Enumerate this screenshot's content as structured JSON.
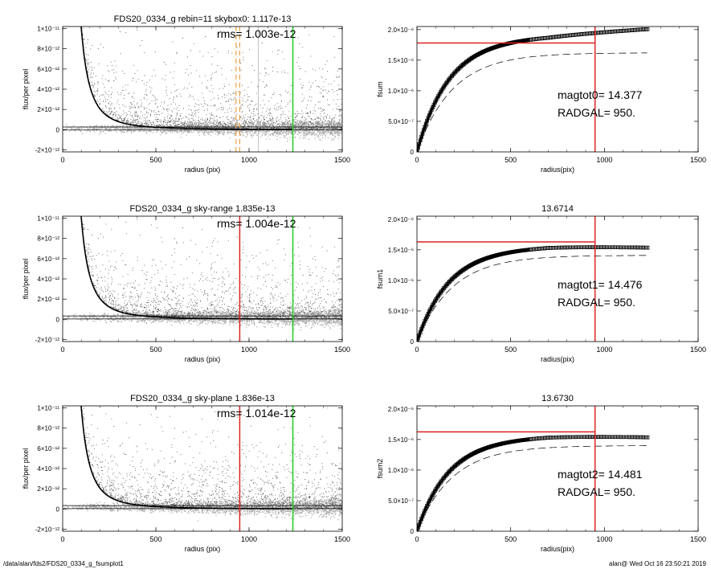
{
  "footer": {
    "left": "/data/alan/fds2/FDS20_0334_g_fsumplot1",
    "right": "alan@  Wed Oct 16 23:50:21 2019"
  },
  "colors": {
    "data_points": "#555555",
    "sky_points": "#aaaaaa",
    "red_marker": "#dd2222",
    "green_marker": "#22cc22",
    "orange_marker": "#e8a040"
  },
  "chart_data": [
    {
      "type": "scatter",
      "row": 0,
      "title": "FDS20_0334_g rebin=11    skybox0:  1.117e-13",
      "annotation": "rms= 1.003e-12",
      "xlabel": "radius (pix)",
      "ylabel": "flux/per pixel",
      "xlim": [
        0,
        1500
      ],
      "ylim": [
        -2.2e-12,
        1.02e-11
      ],
      "x_ticks": [
        0,
        500,
        1000,
        1500
      ],
      "y_ticks": [
        -2e-12,
        0,
        2e-12,
        4e-12,
        6e-12,
        8e-12,
        1e-11
      ],
      "y_tick_labels": [
        "-2×10⁻¹²",
        "0",
        "2×10⁻¹²",
        "4×10⁻¹²",
        "6×10⁻¹²",
        "8×10⁻¹²",
        "1×10⁻¹¹"
      ],
      "profile_model": {
        "amplitude": 1e-10,
        "scale_radius": 40
      },
      "sky_level": 1.117e-13,
      "markers": [
        {
          "x": 930,
          "style": "orange-dashed"
        },
        {
          "x": 950,
          "style": "orange-dashed"
        },
        {
          "x": 1050,
          "style": "gray-thin"
        },
        {
          "x": 1235,
          "style": "green"
        }
      ]
    },
    {
      "type": "line",
      "row": 0,
      "title": "",
      "annotation_lines": [
        "magtot0=  14.377",
        "RADGAL=    950."
      ],
      "xlabel": "radius(pix)",
      "ylabel": "fsum",
      "xlim": [
        0,
        1500
      ],
      "ylim": [
        0,
        2.05e-06
      ],
      "x_ticks": [
        0,
        500,
        1000,
        1500
      ],
      "y_ticks": [
        0,
        5e-07,
        1e-06,
        1.5e-06,
        2e-06
      ],
      "y_tick_labels": [
        "0",
        "5.0×10⁻⁷",
        "1.0×10⁻⁶",
        "1.5×10⁻⁶",
        "2.0×10⁻⁶"
      ],
      "curve_asymptote": 2e-06,
      "curve_slope_after": 1.3e-10,
      "dashed_asymptote": 1.62e-06,
      "hline_y": 1.78e-06,
      "vline_x": 950,
      "curve_end_x": 1230
    },
    {
      "type": "scatter",
      "row": 1,
      "title": "FDS20_0334_g sky-range  1.835e-13",
      "annotation": "rms= 1.004e-12",
      "xlabel": "radius (pix)",
      "ylabel": "flux/per pixel",
      "xlim": [
        0,
        1500
      ],
      "ylim": [
        -2.2e-12,
        1.02e-11
      ],
      "x_ticks": [
        0,
        500,
        1000,
        1500
      ],
      "y_ticks": [
        -2e-12,
        0,
        2e-12,
        4e-12,
        6e-12,
        8e-12,
        1e-11
      ],
      "y_tick_labels": [
        "-2×10⁻¹²",
        "0",
        "2×10⁻¹²",
        "4×10⁻¹²",
        "6×10⁻¹²",
        "8×10⁻¹²",
        "1×10⁻¹¹"
      ],
      "profile_model": {
        "amplitude": 1e-10,
        "scale_radius": 40
      },
      "sky_level": 1.835e-13,
      "markers": [
        {
          "x": 950,
          "style": "red"
        },
        {
          "x": 1235,
          "style": "green"
        }
      ]
    },
    {
      "type": "line",
      "row": 1,
      "title": "13.6714",
      "annotation_lines": [
        "magtot1=  14.476",
        "RADGAL=    950."
      ],
      "xlabel": "radius(pix)",
      "ylabel": "fsum1",
      "xlim": [
        0,
        1500
      ],
      "ylim": [
        0,
        2.05e-06
      ],
      "x_ticks": [
        0,
        500,
        1000,
        1500
      ],
      "y_ticks": [
        0,
        5e-07,
        1e-06,
        1.5e-06,
        2e-06
      ],
      "y_tick_labels": [
        "0",
        "5.0×10⁻⁷",
        "1.0×10⁻⁶",
        "1.5×10⁻⁶",
        "2.0×10⁻⁶"
      ],
      "curve_asymptote": 1.64e-06,
      "curve_slope_after": -1e-10,
      "dashed_asymptote": 1.41e-06,
      "hline_y": 1.63e-06,
      "vline_x": 950,
      "curve_end_x": 1230
    },
    {
      "type": "scatter",
      "row": 2,
      "title": "FDS20_0334_g sky-plane  1.836e-13",
      "annotation": "rms= 1.014e-12",
      "xlabel": "radius (pix)",
      "ylabel": "flux/per pixel",
      "xlim": [
        0,
        1500
      ],
      "ylim": [
        -2.2e-12,
        1.02e-11
      ],
      "x_ticks": [
        0,
        500,
        1000,
        1500
      ],
      "y_ticks": [
        -2e-12,
        0,
        2e-12,
        4e-12,
        6e-12,
        8e-12,
        1e-11
      ],
      "y_tick_labels": [
        "-2×10⁻¹²",
        "0",
        "2×10⁻¹²",
        "4×10⁻¹²",
        "6×10⁻¹²",
        "8×10⁻¹²",
        "1×10⁻¹¹"
      ],
      "profile_model": {
        "amplitude": 1e-10,
        "scale_radius": 40
      },
      "sky_level": 1.836e-13,
      "markers": [
        {
          "x": 950,
          "style": "red"
        },
        {
          "x": 1235,
          "style": "green"
        }
      ]
    },
    {
      "type": "line",
      "row": 2,
      "title": "13.6730",
      "annotation_lines": [
        "magtot2=  14.481",
        "RADGAL=    950."
      ],
      "xlabel": "radius(pix)",
      "ylabel": "fsum2",
      "xlim": [
        0,
        1500
      ],
      "ylim": [
        0,
        2.05e-06
      ],
      "x_ticks": [
        0,
        500,
        1000,
        1500
      ],
      "y_ticks": [
        0,
        5e-07,
        1e-06,
        1.5e-06,
        2e-06
      ],
      "y_tick_labels": [
        "0",
        "5.0×10⁻⁷",
        "1.0×10⁻⁶",
        "1.5×10⁻⁶",
        "2.0×10⁻⁶"
      ],
      "curve_asymptote": 1.64e-06,
      "curve_slope_after": -1e-10,
      "dashed_asymptote": 1.4e-06,
      "hline_y": 1.625e-06,
      "vline_x": 950,
      "curve_end_x": 1230
    }
  ]
}
